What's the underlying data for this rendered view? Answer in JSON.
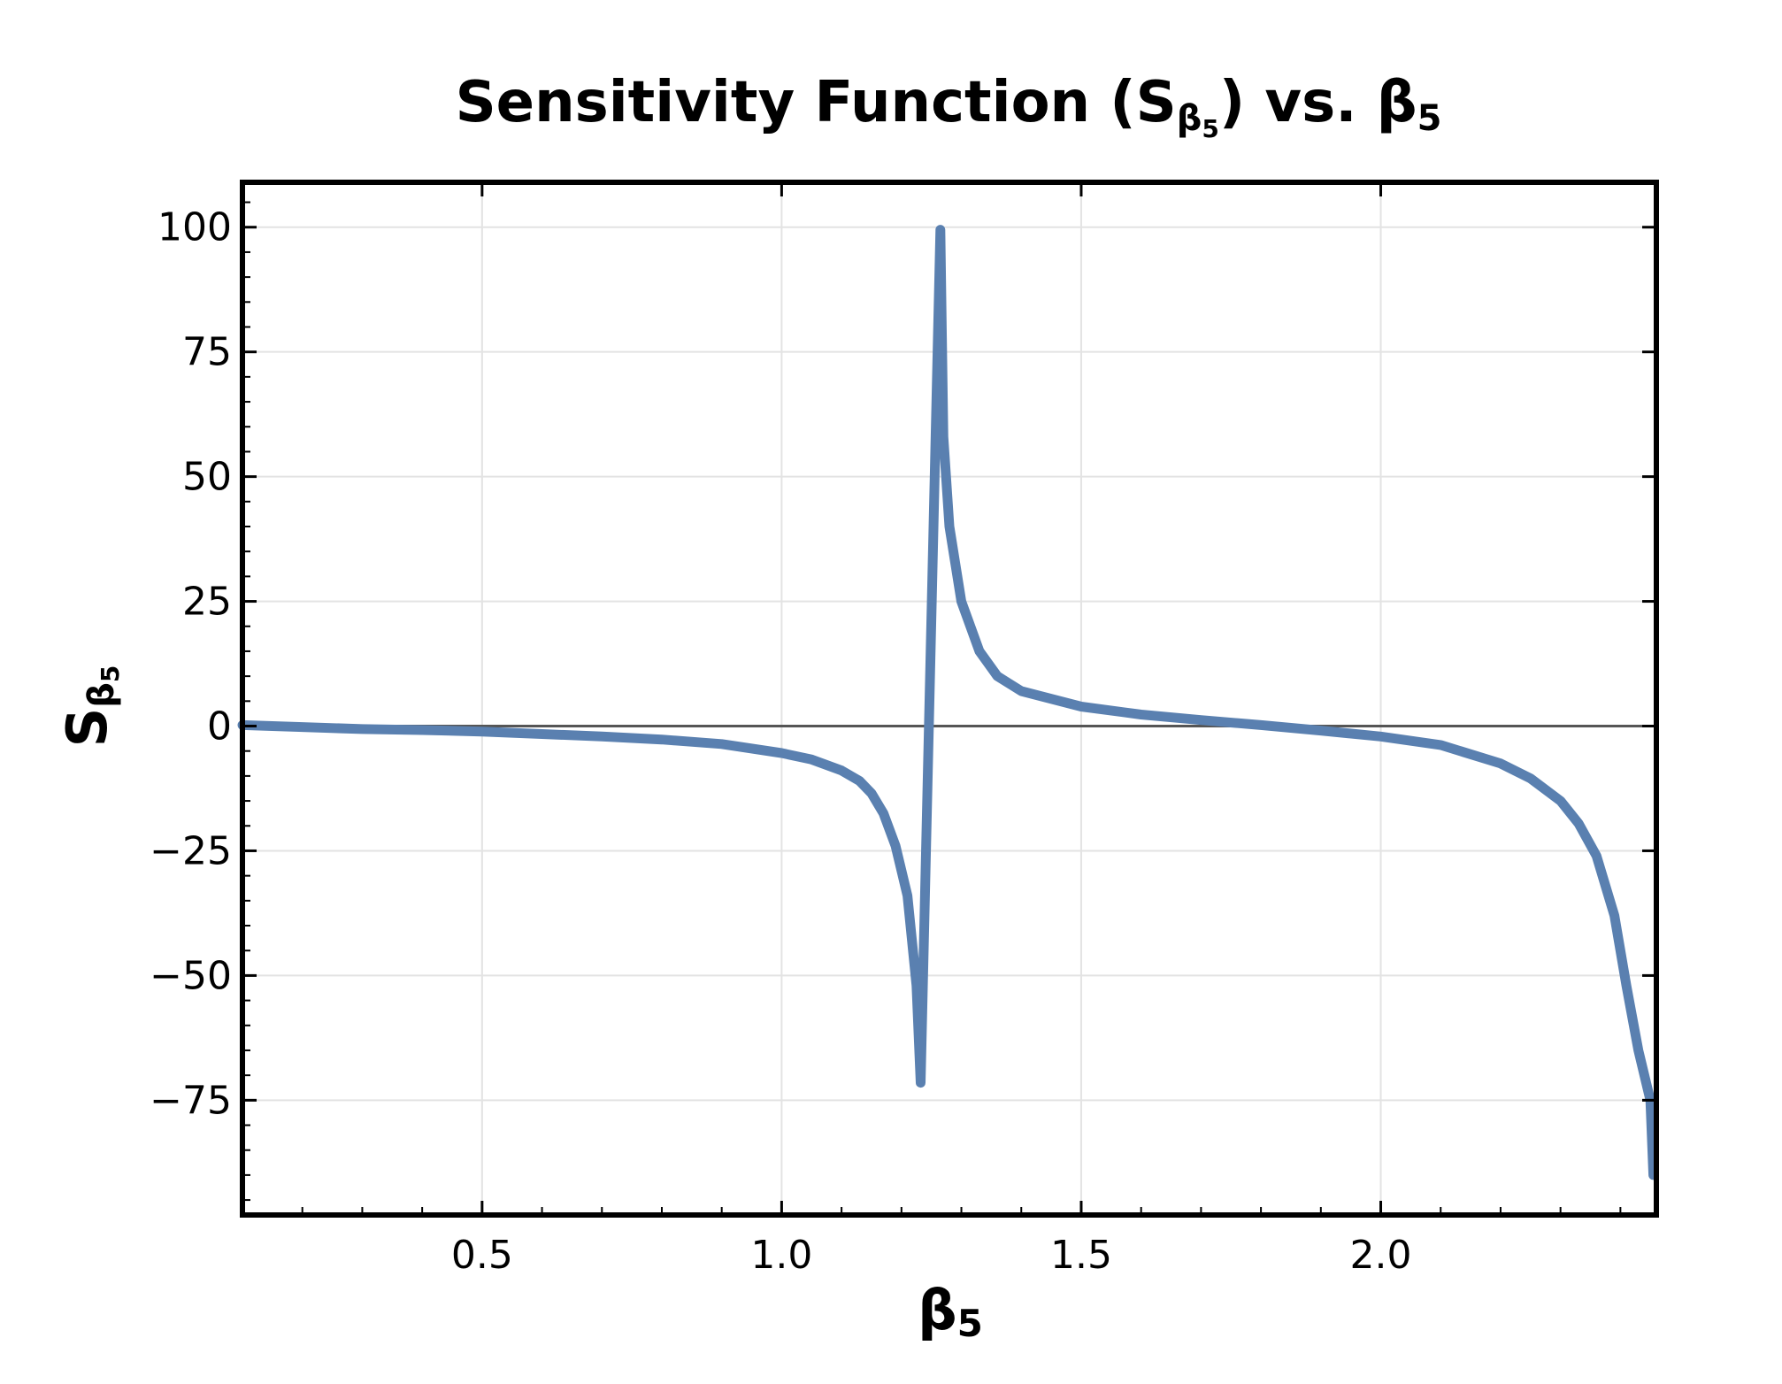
{
  "chart_data": {
    "type": "line",
    "title": {
      "main": "Sensitivity Function (S",
      "sub": "β",
      "subsub": "5",
      "tail": ") vs. β",
      "tail_sub": "5"
    },
    "xlabel": {
      "main": "β",
      "sub": "5"
    },
    "ylabel": {
      "main": "S",
      "sub": "β",
      "subsub": "5"
    },
    "xlim": [
      0.1,
      2.46
    ],
    "ylim": [
      -98,
      109
    ],
    "xticks": [
      {
        "value": 0.5,
        "label": "0.5"
      },
      {
        "value": 1.0,
        "label": "1.0"
      },
      {
        "value": 1.5,
        "label": "1.5"
      },
      {
        "value": 2.0,
        "label": "2.0"
      }
    ],
    "yticks": [
      {
        "value": 100,
        "label": "100"
      },
      {
        "value": 75,
        "label": "75"
      },
      {
        "value": 50,
        "label": "50"
      },
      {
        "value": 25,
        "label": "25"
      },
      {
        "value": 0,
        "label": "0"
      },
      {
        "value": -25,
        "label": "−25"
      },
      {
        "value": -50,
        "label": "−50"
      },
      {
        "value": -75,
        "label": "−75"
      }
    ],
    "grid": true,
    "zero_line": true,
    "colors": {
      "line": "#5a80b0",
      "zero_line": "#555555",
      "grid": "#e3e3e3",
      "axes": "#000000"
    },
    "series": [
      {
        "x": [
          0.1,
          0.2,
          0.3,
          0.4,
          0.5,
          0.6,
          0.7,
          0.8,
          0.9,
          1.0,
          1.05,
          1.1,
          1.13,
          1.15,
          1.17,
          1.19,
          1.21,
          1.225,
          1.232,
          1.265,
          1.27,
          1.28,
          1.3,
          1.33,
          1.36,
          1.4,
          1.5,
          1.6,
          1.7,
          1.8,
          1.9,
          2.0,
          2.1,
          2.2,
          2.25,
          2.3,
          2.33,
          2.36,
          2.39,
          2.41,
          2.43,
          2.45,
          2.455
        ],
        "y": [
          0.2,
          -0.2,
          -0.6,
          -0.8,
          -1.1,
          -1.6,
          -2.1,
          -2.7,
          -3.6,
          -5.4,
          -6.7,
          -8.9,
          -11.0,
          -13.5,
          -17.5,
          -24.0,
          -34.0,
          -52.0,
          -71.5,
          99.5,
          58.0,
          40.0,
          25.0,
          15.0,
          10.0,
          7.0,
          3.9,
          2.3,
          1.2,
          0.2,
          -0.9,
          -2.1,
          -3.8,
          -7.5,
          -10.5,
          -15.0,
          -19.5,
          -26.0,
          -38.0,
          -52.0,
          -65.0,
          -75.0,
          -90.0
        ]
      }
    ]
  }
}
